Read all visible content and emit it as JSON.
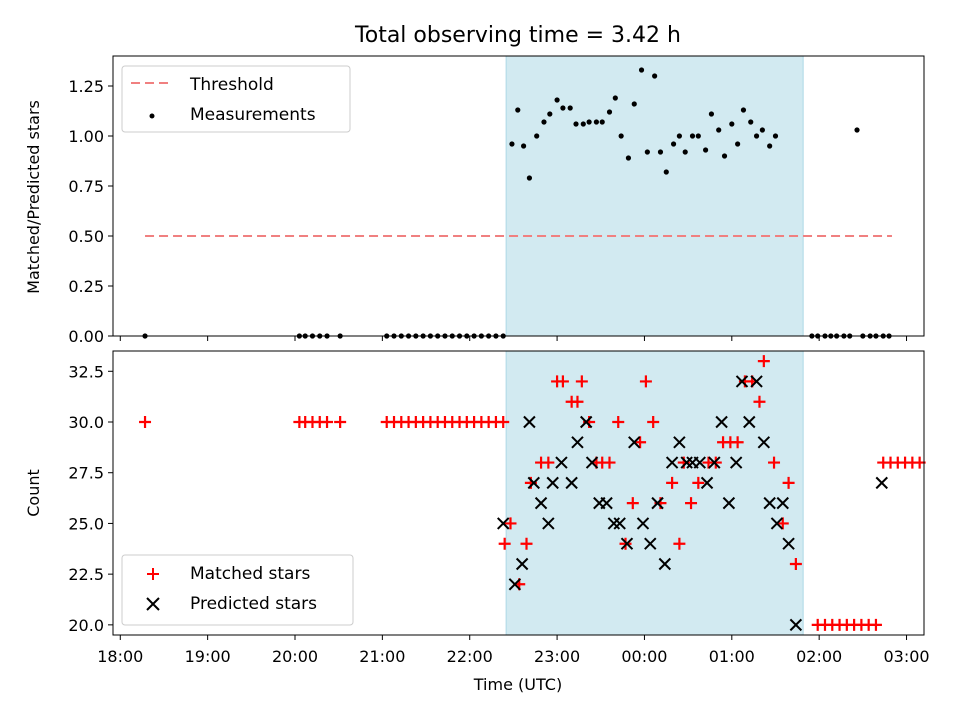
{
  "title": "Total observing time = 3.42 h",
  "chart_data": [
    {
      "type": "scatter",
      "ylabel": "Matched/Predicted stars",
      "xlim": [
        "17:55",
        "03:12"
      ],
      "ylim": [
        0,
        1.4
      ],
      "yticks": [
        0.0,
        0.25,
        0.5,
        0.75,
        1.0,
        1.25
      ],
      "shaded_span": [
        "22:25",
        "01:49"
      ],
      "legend_position": "top-left",
      "legend": [
        "Threshold",
        "Measurements"
      ],
      "threshold": {
        "name": "Threshold",
        "value": 0.5,
        "x": [
          "18:17",
          "02:50"
        ],
        "color": "#f08080"
      },
      "measurements": {
        "name": "Measurements",
        "color": "#000000",
        "points": [
          [
            "18:17",
            0
          ],
          [
            "20:03",
            0
          ],
          [
            "20:07",
            0
          ],
          [
            "20:12",
            0
          ],
          [
            "20:17",
            0
          ],
          [
            "20:22",
            0
          ],
          [
            "20:31",
            0
          ],
          [
            "21:03",
            0
          ],
          [
            "21:08",
            0
          ],
          [
            "21:13",
            0
          ],
          [
            "21:18",
            0
          ],
          [
            "21:23",
            0
          ],
          [
            "21:28",
            0
          ],
          [
            "21:33",
            0
          ],
          [
            "21:38",
            0
          ],
          [
            "21:43",
            0
          ],
          [
            "21:48",
            0
          ],
          [
            "21:53",
            0
          ],
          [
            "21:58",
            0
          ],
          [
            "22:03",
            0
          ],
          [
            "22:08",
            0
          ],
          [
            "22:13",
            0
          ],
          [
            "22:18",
            0
          ],
          [
            "22:23",
            0
          ],
          [
            "22:29",
            0.96
          ],
          [
            "22:33",
            1.13
          ],
          [
            "22:37",
            0.95
          ],
          [
            "22:41",
            0.79
          ],
          [
            "22:46",
            1.0
          ],
          [
            "22:51",
            1.07
          ],
          [
            "22:55",
            1.11
          ],
          [
            "23:00",
            1.18
          ],
          [
            "23:04",
            1.14
          ],
          [
            "23:09",
            1.14
          ],
          [
            "23:13",
            1.06
          ],
          [
            "23:18",
            1.06
          ],
          [
            "23:22",
            1.07
          ],
          [
            "23:27",
            1.07
          ],
          [
            "23:31",
            1.07
          ],
          [
            "23:36",
            1.12
          ],
          [
            "23:40",
            1.19
          ],
          [
            "23:44",
            1.0
          ],
          [
            "23:49",
            0.89
          ],
          [
            "23:53",
            1.16
          ],
          [
            "23:58",
            1.33
          ],
          [
            "00:02",
            0.92
          ],
          [
            "00:07",
            1.3
          ],
          [
            "00:11",
            0.92
          ],
          [
            "00:15",
            0.82
          ],
          [
            "00:20",
            0.96
          ],
          [
            "00:24",
            1.0
          ],
          [
            "00:28",
            0.92
          ],
          [
            "00:33",
            1.0
          ],
          [
            "00:37",
            1.0
          ],
          [
            "00:42",
            0.93
          ],
          [
            "00:46",
            1.11
          ],
          [
            "00:51",
            1.03
          ],
          [
            "00:55",
            0.9
          ],
          [
            "01:00",
            1.06
          ],
          [
            "01:04",
            0.96
          ],
          [
            "01:08",
            1.13
          ],
          [
            "01:13",
            1.07
          ],
          [
            "01:17",
            1.0
          ],
          [
            "01:21",
            1.03
          ],
          [
            "01:26",
            0.95
          ],
          [
            "01:30",
            1.0
          ],
          [
            "01:55",
            0
          ],
          [
            "01:59",
            0
          ],
          [
            "02:04",
            0
          ],
          [
            "02:08",
            0
          ],
          [
            "02:12",
            0
          ],
          [
            "02:17",
            0
          ],
          [
            "02:21",
            0
          ],
          [
            "02:26",
            1.03
          ],
          [
            "02:30",
            0
          ],
          [
            "02:35",
            0
          ],
          [
            "02:39",
            0
          ],
          [
            "02:44",
            0
          ],
          [
            "02:48",
            0
          ]
        ]
      }
    },
    {
      "type": "scatter",
      "xlabel": "Time (UTC)",
      "ylabel": "Count",
      "xlim": [
        "17:55",
        "03:12"
      ],
      "ylim": [
        19.5,
        33.5
      ],
      "xticks": [
        "18:00",
        "19:00",
        "20:00",
        "21:00",
        "22:00",
        "23:00",
        "00:00",
        "01:00",
        "02:00",
        "03:00"
      ],
      "yticks": [
        20.0,
        22.5,
        25.0,
        27.5,
        30.0,
        32.5
      ],
      "shaded_span": [
        "22:25",
        "01:49"
      ],
      "legend_position": "lower-left",
      "legend": [
        "Matched stars",
        "Predicted stars"
      ],
      "series": [
        {
          "name": "Matched stars",
          "marker": "+",
          "color": "#ff0000",
          "points": [
            [
              "18:17",
              30
            ],
            [
              "20:03",
              30
            ],
            [
              "20:07",
              30
            ],
            [
              "20:12",
              30
            ],
            [
              "20:17",
              30
            ],
            [
              "20:22",
              30
            ],
            [
              "20:31",
              30
            ],
            [
              "21:03",
              30
            ],
            [
              "21:08",
              30
            ],
            [
              "21:13",
              30
            ],
            [
              "21:18",
              30
            ],
            [
              "21:23",
              30
            ],
            [
              "21:28",
              30
            ],
            [
              "21:33",
              30
            ],
            [
              "21:38",
              30
            ],
            [
              "21:43",
              30
            ],
            [
              "21:48",
              30
            ],
            [
              "21:53",
              30
            ],
            [
              "21:58",
              30
            ],
            [
              "22:03",
              30
            ],
            [
              "22:08",
              30
            ],
            [
              "22:13",
              30
            ],
            [
              "22:18",
              30
            ],
            [
              "22:23",
              30
            ],
            [
              "22:24",
              24
            ],
            [
              "22:28",
              25
            ],
            [
              "22:34",
              22
            ],
            [
              "22:39",
              24
            ],
            [
              "22:42",
              27
            ],
            [
              "22:49",
              28
            ],
            [
              "22:54",
              28
            ],
            [
              "23:00",
              32
            ],
            [
              "23:04",
              32
            ],
            [
              "23:10",
              31
            ],
            [
              "23:14",
              31
            ],
            [
              "23:17",
              32
            ],
            [
              "23:22",
              30
            ],
            [
              "23:27",
              28
            ],
            [
              "23:31",
              28
            ],
            [
              "23:36",
              28
            ],
            [
              "23:42",
              30
            ],
            [
              "23:47",
              24
            ],
            [
              "23:52",
              26
            ],
            [
              "23:57",
              29
            ],
            [
              "24:01",
              32
            ],
            [
              "24:06",
              30
            ],
            [
              "24:11",
              26
            ],
            [
              "24:19",
              27
            ],
            [
              "24:24",
              24
            ],
            [
              "24:27",
              28
            ],
            [
              "24:32",
              26
            ],
            [
              "24:37",
              27
            ],
            [
              "24:44",
              28
            ],
            [
              "24:49",
              28
            ],
            [
              "24:54",
              29
            ],
            [
              "24:59",
              29
            ],
            [
              "25:04",
              29
            ],
            [
              "25:09",
              32
            ],
            [
              "25:14",
              32
            ],
            [
              "25:19",
              31
            ],
            [
              "25:22",
              33
            ],
            [
              "25:29",
              28
            ],
            [
              "25:35",
              25
            ],
            [
              "25:39",
              27
            ],
            [
              "25:44",
              23
            ],
            [
              "25:59",
              20
            ],
            [
              "26:04",
              20
            ],
            [
              "26:09",
              20
            ],
            [
              "26:14",
              20
            ],
            [
              "26:19",
              20
            ],
            [
              "26:24",
              20
            ],
            [
              "26:29",
              20
            ],
            [
              "26:34",
              20
            ],
            [
              "26:39",
              20
            ],
            [
              "26:44",
              28
            ],
            [
              "26:49",
              28
            ],
            [
              "26:54",
              28
            ],
            [
              "26:59",
              28
            ],
            [
              "27:04",
              28
            ],
            [
              "27:09",
              28
            ]
          ]
        },
        {
          "name": "Predicted stars",
          "marker": "x",
          "color": "#000000",
          "points": [
            [
              "22:23",
              25
            ],
            [
              "22:31",
              22
            ],
            [
              "22:36",
              23
            ],
            [
              "22:41",
              30
            ],
            [
              "22:44",
              27
            ],
            [
              "22:49",
              26
            ],
            [
              "22:54",
              25
            ],
            [
              "22:57",
              27
            ],
            [
              "23:03",
              28
            ],
            [
              "23:10",
              27
            ],
            [
              "23:14",
              29
            ],
            [
              "23:20",
              30
            ],
            [
              "23:24",
              28
            ],
            [
              "23:29",
              26
            ],
            [
              "23:34",
              26
            ],
            [
              "23:39",
              25
            ],
            [
              "23:43",
              25
            ],
            [
              "23:48",
              24
            ],
            [
              "23:53",
              29
            ],
            [
              "23:59",
              25
            ],
            [
              "24:04",
              24
            ],
            [
              "24:09",
              26
            ],
            [
              "24:14",
              23
            ],
            [
              "24:19",
              28
            ],
            [
              "24:24",
              29
            ],
            [
              "24:29",
              28
            ],
            [
              "24:33",
              28
            ],
            [
              "24:38",
              28
            ],
            [
              "24:43",
              27
            ],
            [
              "24:48",
              28
            ],
            [
              "24:53",
              30
            ],
            [
              "24:58",
              26
            ],
            [
              "25:03",
              28
            ],
            [
              "25:07",
              32
            ],
            [
              "25:12",
              30
            ],
            [
              "25:17",
              32
            ],
            [
              "25:22",
              29
            ],
            [
              "25:26",
              26
            ],
            [
              "25:31",
              25
            ],
            [
              "25:35",
              26
            ],
            [
              "25:39",
              24
            ],
            [
              "25:44",
              20
            ],
            [
              "26:43",
              27
            ]
          ]
        }
      ]
    }
  ]
}
